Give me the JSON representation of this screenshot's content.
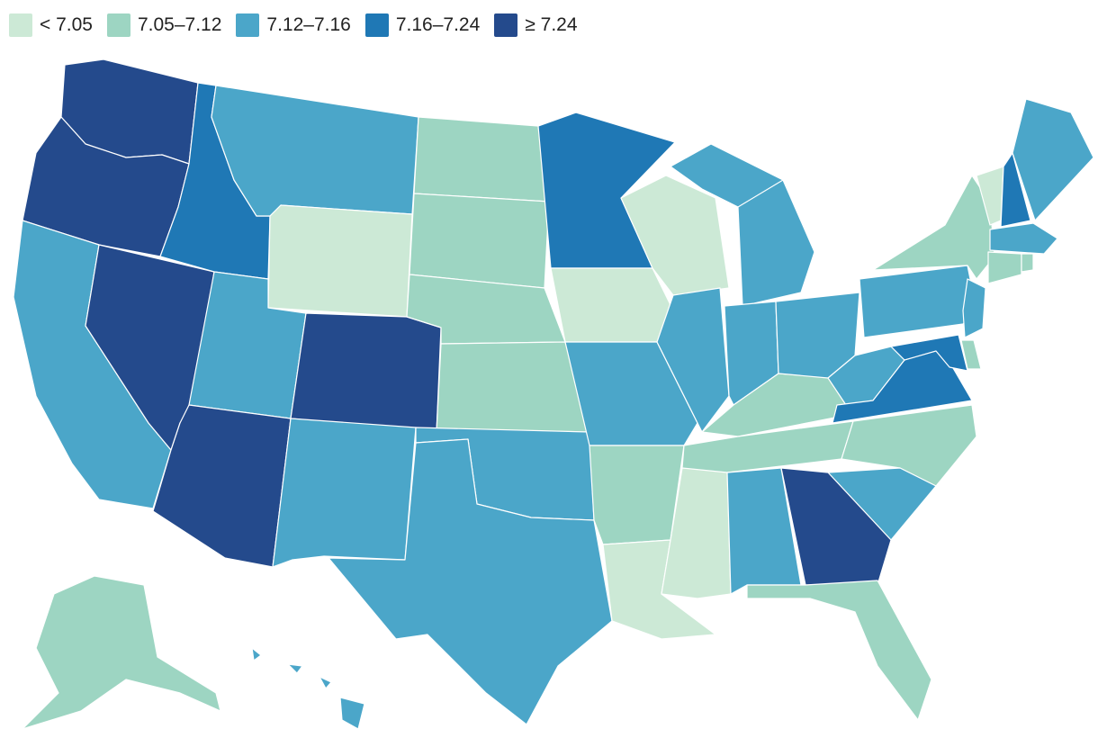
{
  "legend": {
    "items": [
      {
        "label": "< 7.05",
        "color": "#cce9d6"
      },
      {
        "label": "7.05–7.12",
        "color": "#9dd5c2"
      },
      {
        "label": "7.12–7.16",
        "color": "#4ba6c9"
      },
      {
        "label": "7.16–7.24",
        "color": "#1f78b5"
      },
      {
        "label": "≥ 7.24",
        "color": "#244a8c"
      }
    ]
  },
  "states": {
    "WA": 4,
    "OR": 4,
    "CA": 2,
    "NV": 4,
    "ID": 3,
    "MT": 2,
    "WY": 0,
    "UT": 2,
    "AZ": 4,
    "CO": 4,
    "NM": 2,
    "ND": 1,
    "SD": 1,
    "NE": 1,
    "KS": 1,
    "OK": 2,
    "TX": 2,
    "MN": 3,
    "IA": 0,
    "MO": 2,
    "AR": 1,
    "LA": 0,
    "WI": 0,
    "IL": 2,
    "MS": 0,
    "MI": 2,
    "IN": 2,
    "KY": 1,
    "TN": 1,
    "AL": 2,
    "OH": 2,
    "WV": 2,
    "VA": 3,
    "NC": 1,
    "SC": 2,
    "GA": 4,
    "FL": 1,
    "PA": 2,
    "NY": 1,
    "VT": 0,
    "NH": 3,
    "ME": 2,
    "MA": 2,
    "CT": 1,
    "RI": 1,
    "NJ": 2,
    "DE": 1,
    "MD": 3,
    "AK": 1,
    "HI": 2
  }
}
